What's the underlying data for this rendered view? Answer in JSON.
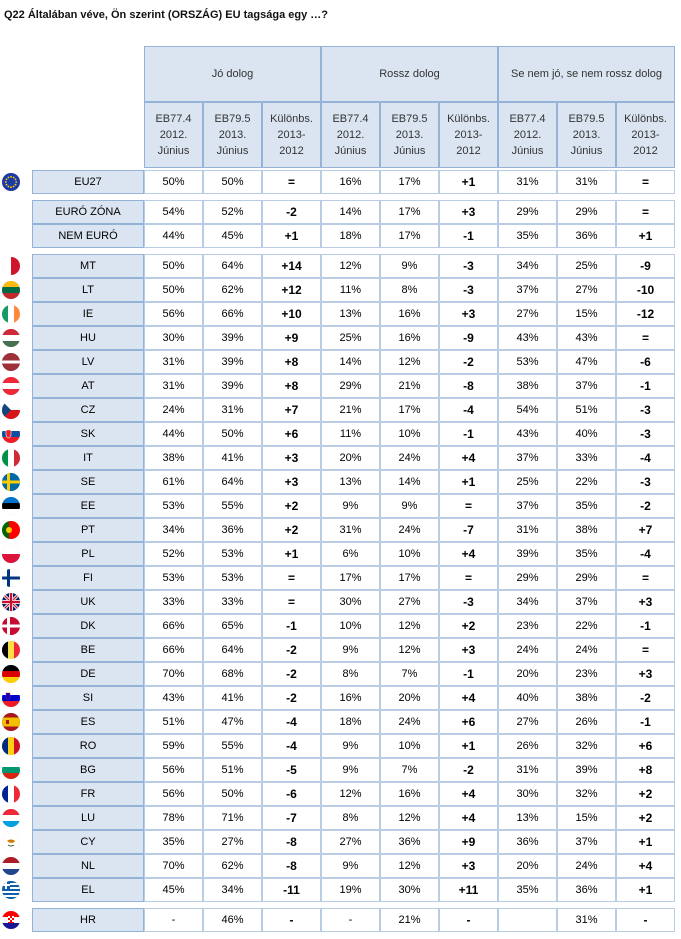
{
  "title": "Q22 Általában véve, Ön szerint (ORSZÁG) EU tagsága egy …?",
  "groups": [
    {
      "label": "Jó dolog"
    },
    {
      "label": "Rossz dolog"
    },
    {
      "label": "Se nem jó, se nem rossz dolog"
    }
  ],
  "subheaders": [
    "EB77.4\n2012.\nJúnius",
    "EB79.5\n2013.\nJúnius",
    "Különbs.\n2013-\n2012"
  ],
  "rows": [
    {
      "code": "EU27",
      "flag": "eu-flag-icon",
      "v": [
        "50%",
        "50%",
        "=",
        "16%",
        "17%",
        "+1",
        "31%",
        "31%",
        "="
      ]
    },
    {
      "code": "EURÓ ZÓNA",
      "flag": null,
      "v": [
        "54%",
        "52%",
        "-2",
        "14%",
        "17%",
        "+3",
        "29%",
        "29%",
        "="
      ]
    },
    {
      "code": "NEM EURÓ",
      "flag": null,
      "v": [
        "44%",
        "45%",
        "+1",
        "18%",
        "17%",
        "-1",
        "35%",
        "36%",
        "+1"
      ]
    },
    {
      "code": "MT",
      "flag": "malta-flag-icon",
      "v": [
        "50%",
        "64%",
        "+14",
        "12%",
        "9%",
        "-3",
        "34%",
        "25%",
        "-9"
      ]
    },
    {
      "code": "LT",
      "flag": "lithuania-flag-icon",
      "v": [
        "50%",
        "62%",
        "+12",
        "11%",
        "8%",
        "-3",
        "37%",
        "27%",
        "-10"
      ]
    },
    {
      "code": "IE",
      "flag": "ireland-flag-icon",
      "v": [
        "56%",
        "66%",
        "+10",
        "13%",
        "16%",
        "+3",
        "27%",
        "15%",
        "-12"
      ]
    },
    {
      "code": "HU",
      "flag": "hungary-flag-icon",
      "v": [
        "30%",
        "39%",
        "+9",
        "25%",
        "16%",
        "-9",
        "43%",
        "43%",
        "="
      ]
    },
    {
      "code": "LV",
      "flag": "latvia-flag-icon",
      "v": [
        "31%",
        "39%",
        "+8",
        "14%",
        "12%",
        "-2",
        "53%",
        "47%",
        "-6"
      ]
    },
    {
      "code": "AT",
      "flag": "austria-flag-icon",
      "v": [
        "31%",
        "39%",
        "+8",
        "29%",
        "21%",
        "-8",
        "38%",
        "37%",
        "-1"
      ]
    },
    {
      "code": "CZ",
      "flag": "czech-flag-icon",
      "v": [
        "24%",
        "31%",
        "+7",
        "21%",
        "17%",
        "-4",
        "54%",
        "51%",
        "-3"
      ]
    },
    {
      "code": "SK",
      "flag": "slovakia-flag-icon",
      "v": [
        "44%",
        "50%",
        "+6",
        "11%",
        "10%",
        "-1",
        "43%",
        "40%",
        "-3"
      ]
    },
    {
      "code": "IT",
      "flag": "italy-flag-icon",
      "v": [
        "38%",
        "41%",
        "+3",
        "20%",
        "24%",
        "+4",
        "37%",
        "33%",
        "-4"
      ]
    },
    {
      "code": "SE",
      "flag": "sweden-flag-icon",
      "v": [
        "61%",
        "64%",
        "+3",
        "13%",
        "14%",
        "+1",
        "25%",
        "22%",
        "-3"
      ]
    },
    {
      "code": "EE",
      "flag": "estonia-flag-icon",
      "v": [
        "53%",
        "55%",
        "+2",
        "9%",
        "9%",
        "=",
        "37%",
        "35%",
        "-2"
      ]
    },
    {
      "code": "PT",
      "flag": "portugal-flag-icon",
      "v": [
        "34%",
        "36%",
        "+2",
        "31%",
        "24%",
        "-7",
        "31%",
        "38%",
        "+7"
      ]
    },
    {
      "code": "PL",
      "flag": "poland-flag-icon",
      "v": [
        "52%",
        "53%",
        "+1",
        "6%",
        "10%",
        "+4",
        "39%",
        "35%",
        "-4"
      ]
    },
    {
      "code": "FI",
      "flag": "finland-flag-icon",
      "v": [
        "53%",
        "53%",
        "=",
        "17%",
        "17%",
        "=",
        "29%",
        "29%",
        "="
      ]
    },
    {
      "code": "UK",
      "flag": "uk-flag-icon",
      "v": [
        "33%",
        "33%",
        "=",
        "30%",
        "27%",
        "-3",
        "34%",
        "37%",
        "+3"
      ]
    },
    {
      "code": "DK",
      "flag": "denmark-flag-icon",
      "v": [
        "66%",
        "65%",
        "-1",
        "10%",
        "12%",
        "+2",
        "23%",
        "22%",
        "-1"
      ]
    },
    {
      "code": "BE",
      "flag": "belgium-flag-icon",
      "v": [
        "66%",
        "64%",
        "-2",
        "9%",
        "12%",
        "+3",
        "24%",
        "24%",
        "="
      ]
    },
    {
      "code": "DE",
      "flag": "germany-flag-icon",
      "v": [
        "70%",
        "68%",
        "-2",
        "8%",
        "7%",
        "-1",
        "20%",
        "23%",
        "+3"
      ]
    },
    {
      "code": "SI",
      "flag": "slovenia-flag-icon",
      "v": [
        "43%",
        "41%",
        "-2",
        "16%",
        "20%",
        "+4",
        "40%",
        "38%",
        "-2"
      ]
    },
    {
      "code": "ES",
      "flag": "spain-flag-icon",
      "v": [
        "51%",
        "47%",
        "-4",
        "18%",
        "24%",
        "+6",
        "27%",
        "26%",
        "-1"
      ]
    },
    {
      "code": "RO",
      "flag": "romania-flag-icon",
      "v": [
        "59%",
        "55%",
        "-4",
        "9%",
        "10%",
        "+1",
        "26%",
        "32%",
        "+6"
      ]
    },
    {
      "code": "BG",
      "flag": "bulgaria-flag-icon",
      "v": [
        "56%",
        "51%",
        "-5",
        "9%",
        "7%",
        "-2",
        "31%",
        "39%",
        "+8"
      ]
    },
    {
      "code": "FR",
      "flag": "france-flag-icon",
      "v": [
        "56%",
        "50%",
        "-6",
        "12%",
        "16%",
        "+4",
        "30%",
        "32%",
        "+2"
      ]
    },
    {
      "code": "LU",
      "flag": "luxembourg-flag-icon",
      "v": [
        "78%",
        "71%",
        "-7",
        "8%",
        "12%",
        "+4",
        "13%",
        "15%",
        "+2"
      ]
    },
    {
      "code": "CY",
      "flag": "cyprus-flag-icon",
      "v": [
        "35%",
        "27%",
        "-8",
        "27%",
        "36%",
        "+9",
        "36%",
        "37%",
        "+1"
      ]
    },
    {
      "code": "NL",
      "flag": "netherlands-flag-icon",
      "v": [
        "70%",
        "62%",
        "-8",
        "9%",
        "12%",
        "+3",
        "20%",
        "24%",
        "+4"
      ]
    },
    {
      "code": "EL",
      "flag": "greece-flag-icon",
      "v": [
        "45%",
        "34%",
        "-11",
        "19%",
        "30%",
        "+11",
        "35%",
        "36%",
        "+1"
      ]
    },
    {
      "code": "HR",
      "flag": "croatia-flag-icon",
      "v": [
        "-",
        "46%",
        "-",
        "-",
        "21%",
        "-",
        "",
        "31%",
        "-"
      ]
    }
  ]
}
